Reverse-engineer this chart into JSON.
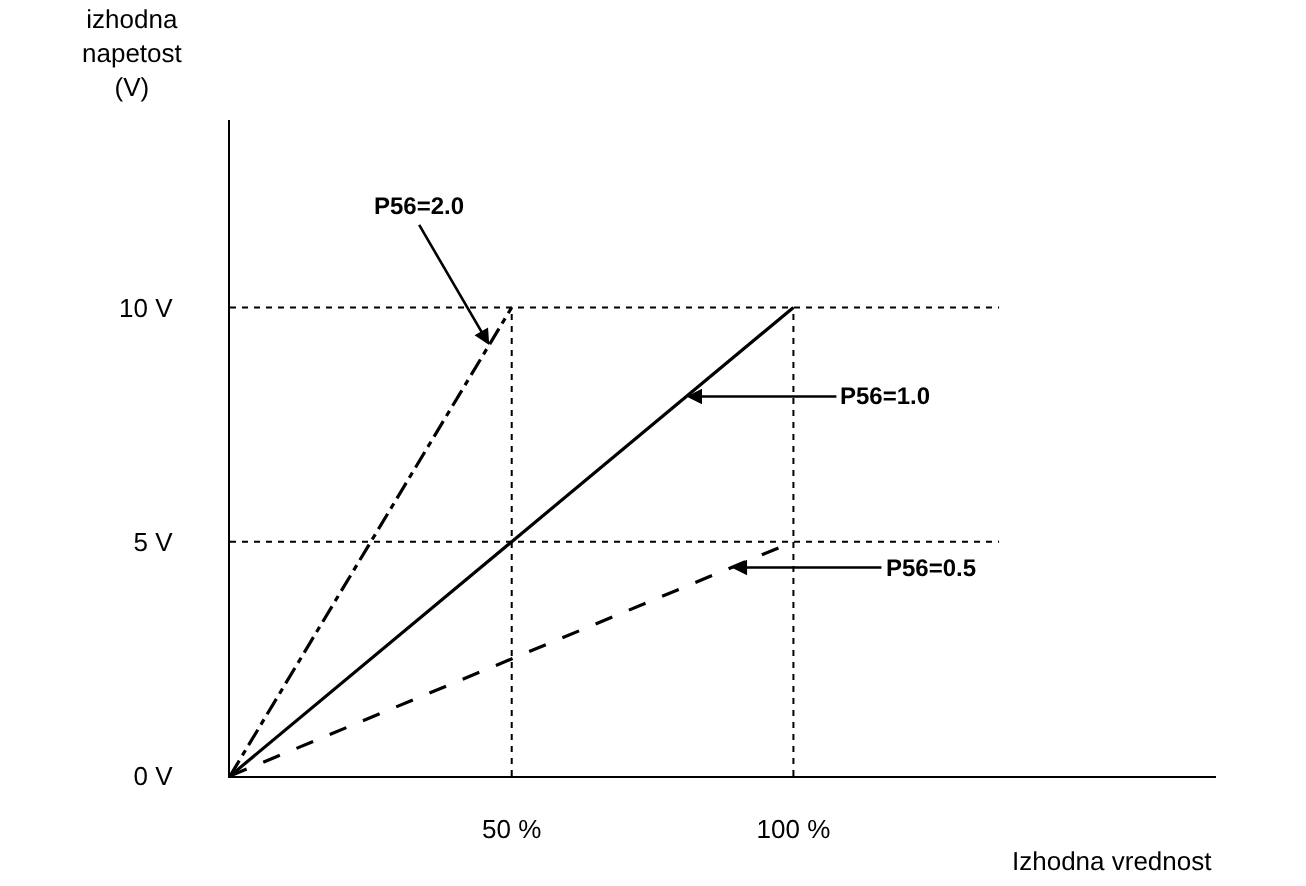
{
  "chart_data": {
    "type": "line",
    "xlabel": "Izhodna vrednost",
    "ylabel": "izhodna\nnapetost\n(V)",
    "series": [
      {
        "color": "#000000",
        "line_style": "dashdot",
        "x": [
          0,
          50
        ],
        "values": [
          0,
          10
        ]
      },
      {
        "color": "#000000",
        "line_style": "solid",
        "x": [
          0,
          100
        ],
        "values": [
          0,
          10
        ]
      },
      {
        "color": "#000000",
        "line_style": "dashed",
        "x": [
          0,
          100
        ],
        "values": [
          0,
          5
        ]
      }
    ],
    "annotations": [
      {
        "text": "P56=2.0",
        "x": 46,
        "y": 9.2
      },
      {
        "text": "P56=1.0",
        "x": 81,
        "y": 8.1
      },
      {
        "text": "P56=0.5",
        "x": 89,
        "y": 4.45
      }
    ],
    "xlim": [
      0,
      175
    ],
    "ylim": [
      0,
      14
    ],
    "xticks": [
      {
        "value": 50,
        "label": "50 %"
      },
      {
        "value": 100,
        "label": "100 %"
      }
    ],
    "yticks": [
      {
        "value": 0,
        "label": "0 V"
      },
      {
        "value": 5,
        "label": "5 V"
      },
      {
        "value": 10,
        "label": "10 V"
      }
    ],
    "ref_lines": [
      {
        "axis": "y",
        "value": 5,
        "line_style": "dotted",
        "color": "#000000"
      },
      {
        "axis": "y",
        "value": 10,
        "line_style": "dotted",
        "color": "#000000"
      },
      {
        "axis": "x",
        "value": 50,
        "line_style": "dotted",
        "color": "#000000"
      },
      {
        "axis": "x",
        "value": 100,
        "line_style": "dotted",
        "color": "#000000"
      }
    ],
    "grid": false,
    "legend": false,
    "marker": "none"
  }
}
